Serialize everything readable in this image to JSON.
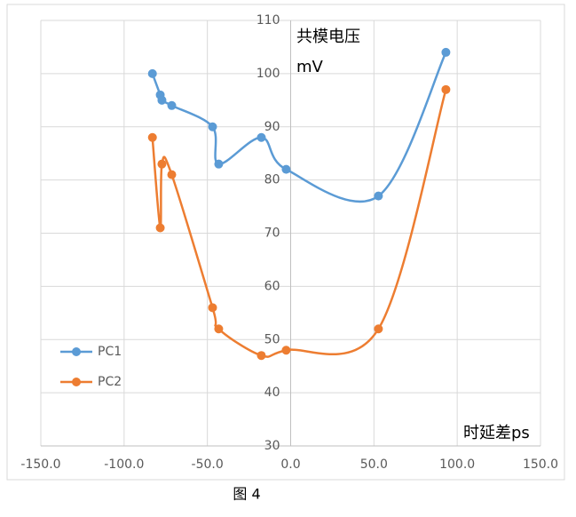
{
  "chart_data": {
    "type": "scatter-smooth",
    "y_label": [
      "共模电压",
      "mV"
    ],
    "x_label": "时延差ps",
    "caption": "图 4",
    "x": [
      -83,
      -78.3,
      -77.3,
      -71.4,
      -46.9,
      -43.2,
      -17.6,
      -2.7,
      52.7,
      93.2
    ],
    "series": [
      {
        "name": "PC1",
        "color": "#5b9bd5",
        "values": [
          100,
          96,
          95,
          94,
          90,
          83,
          88,
          82,
          77,
          104
        ]
      },
      {
        "name": "PC2",
        "color": "#ed7d31",
        "values": [
          88,
          71,
          83,
          81,
          56,
          52,
          47,
          48,
          52,
          97
        ]
      }
    ],
    "xlim": [
      -150,
      150
    ],
    "xticks": [
      {
        "value": -150,
        "label": "-150.0"
      },
      {
        "value": -100,
        "label": "-100.0"
      },
      {
        "value": -50,
        "label": "-50.0"
      },
      {
        "value": 0,
        "label": "0.0"
      },
      {
        "value": 50,
        "label": "50.0"
      },
      {
        "value": 100,
        "label": "100.0"
      },
      {
        "value": 150,
        "label": "150.0"
      }
    ],
    "ylim": [
      30,
      110
    ],
    "yticks": [
      30,
      40,
      50,
      60,
      70,
      80,
      90,
      100,
      110
    ],
    "grid": true,
    "legend": "left"
  }
}
